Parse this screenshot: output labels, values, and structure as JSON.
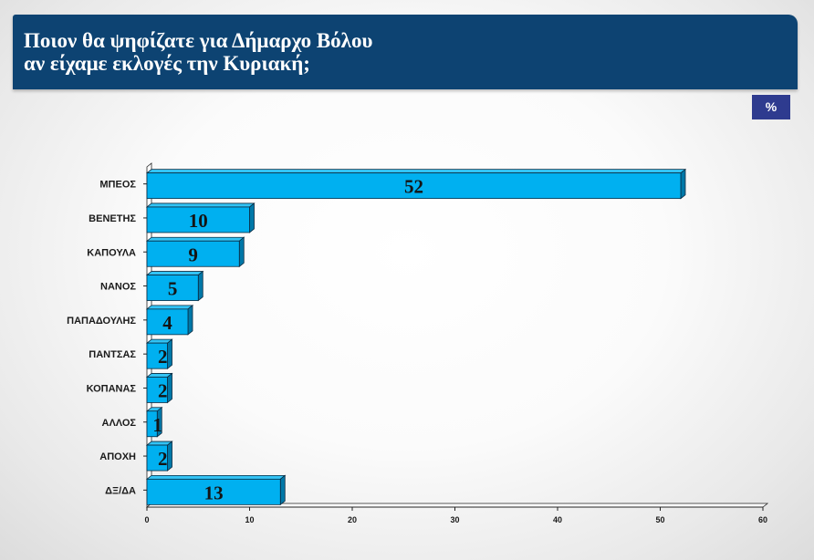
{
  "header": {
    "title_line1": "Ποιον θα ψηφίζατε για Δήμαρχο Βόλου",
    "title_line2": "αν είχαμε εκλογές την Κυριακή;"
  },
  "unit_badge": "%",
  "colors": {
    "header_bg": "#0d4372",
    "badge_bg": "#2e3b8f",
    "bar_front": "#00b0f0",
    "bar_top": "#33c4f5",
    "bar_side": "#0078a8"
  },
  "chart_data": {
    "type": "bar",
    "orientation": "horizontal",
    "categories": [
      "ΜΠΕΟΣ",
      "ΒΕΝΕΤΗΣ",
      "ΚΑΠΟΥΛΑ",
      "ΝΑΝΟΣ",
      "ΠΑΠΑΔΟΥΛΗΣ",
      "ΠΑΝΤΣΑΣ",
      "ΚΟΠΑΝΑΣ",
      "ΑΛΛΟΣ",
      "ΑΠΟΧΗ",
      "ΔΞ/ΔΑ"
    ],
    "values": [
      52,
      10,
      9,
      5,
      4,
      2,
      2,
      1,
      2,
      13
    ],
    "value_labels": [
      "52",
      "10",
      "9",
      "5",
      "4",
      "2",
      "2",
      "1",
      "2",
      "13"
    ],
    "xlim": [
      0,
      60
    ],
    "xticks": [
      0,
      10,
      20,
      30,
      40,
      50,
      60
    ],
    "xtick_labels": [
      "0",
      "10",
      "20",
      "30",
      "40",
      "50",
      "60"
    ],
    "grid": false,
    "legend": "none",
    "style": "3d"
  }
}
